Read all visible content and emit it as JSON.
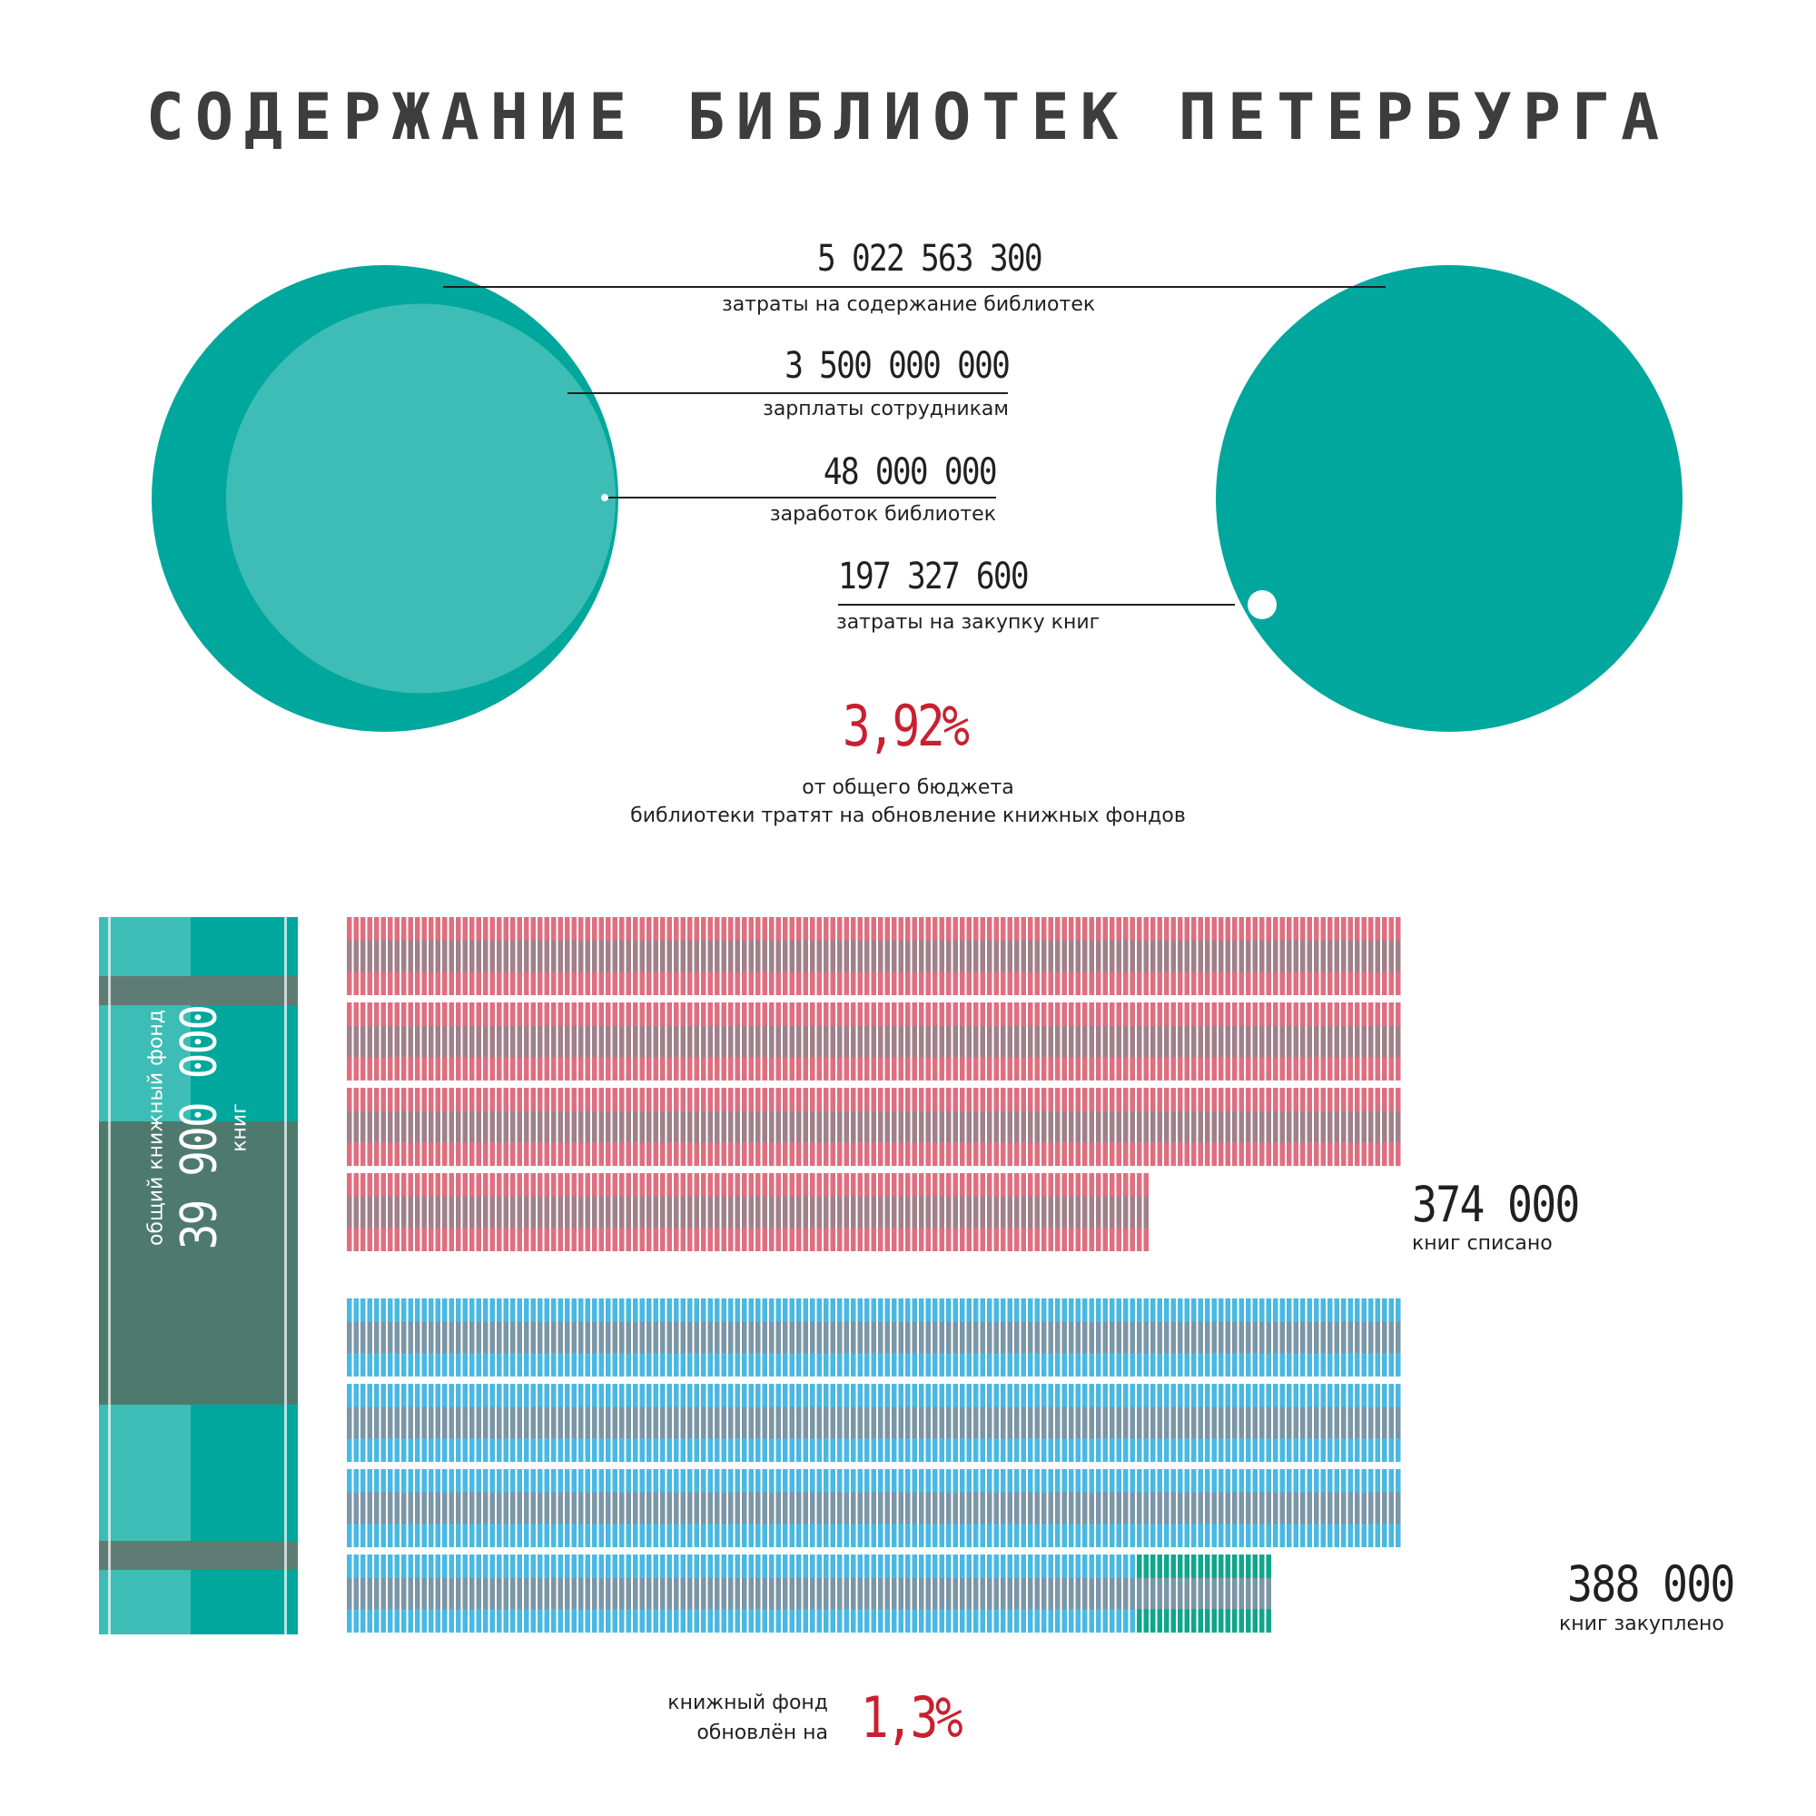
{
  "title": "СОДЕРЖАНИЕ БИБЛИОТЕК ПЕТЕРБУРГА",
  "colors": {
    "teal": "#00a79d",
    "light_teal": "#3dbdb5",
    "spine_band": "#5e7c74",
    "spine_dark": "#4e7a6e",
    "pink": "#de6f80",
    "mauve": "#a0808a",
    "blue": "#4ab8e2",
    "steel": "#7b96a6",
    "green_strip": "#10a68b",
    "accent_red": "#c8202f"
  },
  "budget": {
    "total": {
      "value": "5 022 563 300",
      "label": "затраты на содержание библиотек"
    },
    "salaries": {
      "value": "3 500 000 000",
      "label": "зарплаты сотрудникам"
    },
    "earnings": {
      "value": "48 000 000",
      "label": "заработок библиотек"
    },
    "purchases": {
      "value": "197 327 600",
      "label": "затраты на закупку книг"
    }
  },
  "share": {
    "percent": "3,92%",
    "line1": "от общего бюджета",
    "line2": "библиотеки тратят на обновление книжных фондов"
  },
  "fund": {
    "value": "39 900 000",
    "label1": "общий книжный фонд",
    "label2": "книг"
  },
  "written_off": {
    "value": "374 000",
    "label": "книг списано"
  },
  "purchased": {
    "value": "388 000",
    "label": "книг закуплено"
  },
  "renewal": {
    "line1": "книжный фонд",
    "line2": "обновлён на",
    "percent": "1,3%"
  },
  "chart_data": {
    "type": "bar",
    "title": "СОДЕРЖАНИЕ БИБЛИОТЕК ПЕТЕРБУРГА",
    "budget_series": [
      {
        "label": "затраты на содержание библиотек",
        "value": 5022563300
      },
      {
        "label": "зарплаты сотрудникам",
        "value": 3500000000
      },
      {
        "label": "заработок библиотек",
        "value": 48000000
      },
      {
        "label": "затраты на закупку книг",
        "value": 197327600
      }
    ],
    "books_series": [
      {
        "label": "общий книжный фонд",
        "value": 39900000
      },
      {
        "label": "книг списано",
        "value": 374000
      },
      {
        "label": "книг закуплено",
        "value": 388000
      }
    ],
    "percentages": [
      {
        "label": "от общего бюджета библиотеки тратят на обновление книжных фондов",
        "value": 3.92
      },
      {
        "label": "книжный фонд обновлён на",
        "value": 1.3
      }
    ]
  }
}
